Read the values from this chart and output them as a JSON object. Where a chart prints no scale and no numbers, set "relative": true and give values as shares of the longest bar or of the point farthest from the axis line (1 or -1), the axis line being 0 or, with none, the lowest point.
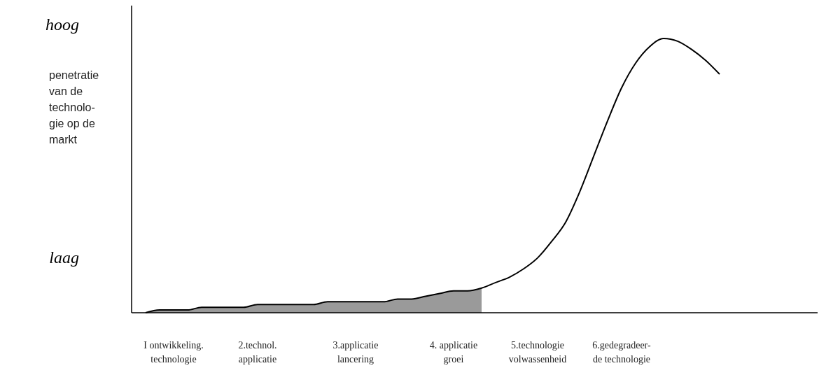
{
  "chart_data": {
    "type": "line",
    "relative": true,
    "ylabel": "penetratie\nvan de\ntechnolo-\ngie op de\nmarkt",
    "annotations": [
      "hoog",
      "laag"
    ],
    "categories": [
      null,
      null,
      "I ontwikkeling.\ntechnologie",
      null,
      null,
      null,
      null,
      null,
      "2.technol.\napplicatie",
      null,
      null,
      null,
      null,
      null,
      null,
      "3.applicatie\nlancering",
      null,
      null,
      null,
      null,
      null,
      null,
      "4. applicatie\ngroei",
      null,
      null,
      null,
      null,
      null,
      "5.technologie\nvolwassenheid",
      null,
      null,
      null,
      null,
      null,
      "6.gedegradeer-\nde technologie",
      null,
      null,
      null,
      null,
      null,
      null,
      null
    ],
    "series": [
      {
        "type": "area",
        "color": "#9a9a9a",
        "values": [
          0,
          0.01,
          0.01,
          0.01,
          0.02,
          0.02,
          0.02,
          0.02,
          0.03,
          0.03,
          0.03,
          0.03,
          0.03,
          0.04,
          0.04,
          0.04,
          0.04,
          0.04,
          0.05,
          0.05,
          0.06,
          0.07,
          0.08,
          0.08,
          0.09,
          null,
          null,
          null,
          null,
          null,
          null,
          null,
          null,
          null,
          null,
          null,
          null,
          null,
          null,
          null,
          null,
          null
        ]
      },
      {
        "color": "#000000",
        "values": [
          0,
          0.01,
          0.01,
          0.01,
          0.02,
          0.02,
          0.02,
          0.02,
          0.03,
          0.03,
          0.03,
          0.03,
          0.03,
          0.04,
          0.04,
          0.04,
          0.04,
          0.04,
          0.05,
          0.05,
          0.06,
          0.07,
          0.08,
          0.08,
          0.09,
          0.11,
          0.13,
          0.16,
          0.2,
          0.26,
          0.33,
          0.44,
          0.57,
          0.7,
          0.82,
          0.91,
          0.97,
          1,
          0.99,
          0.96,
          0.92,
          0.87
        ]
      }
    ]
  }
}
